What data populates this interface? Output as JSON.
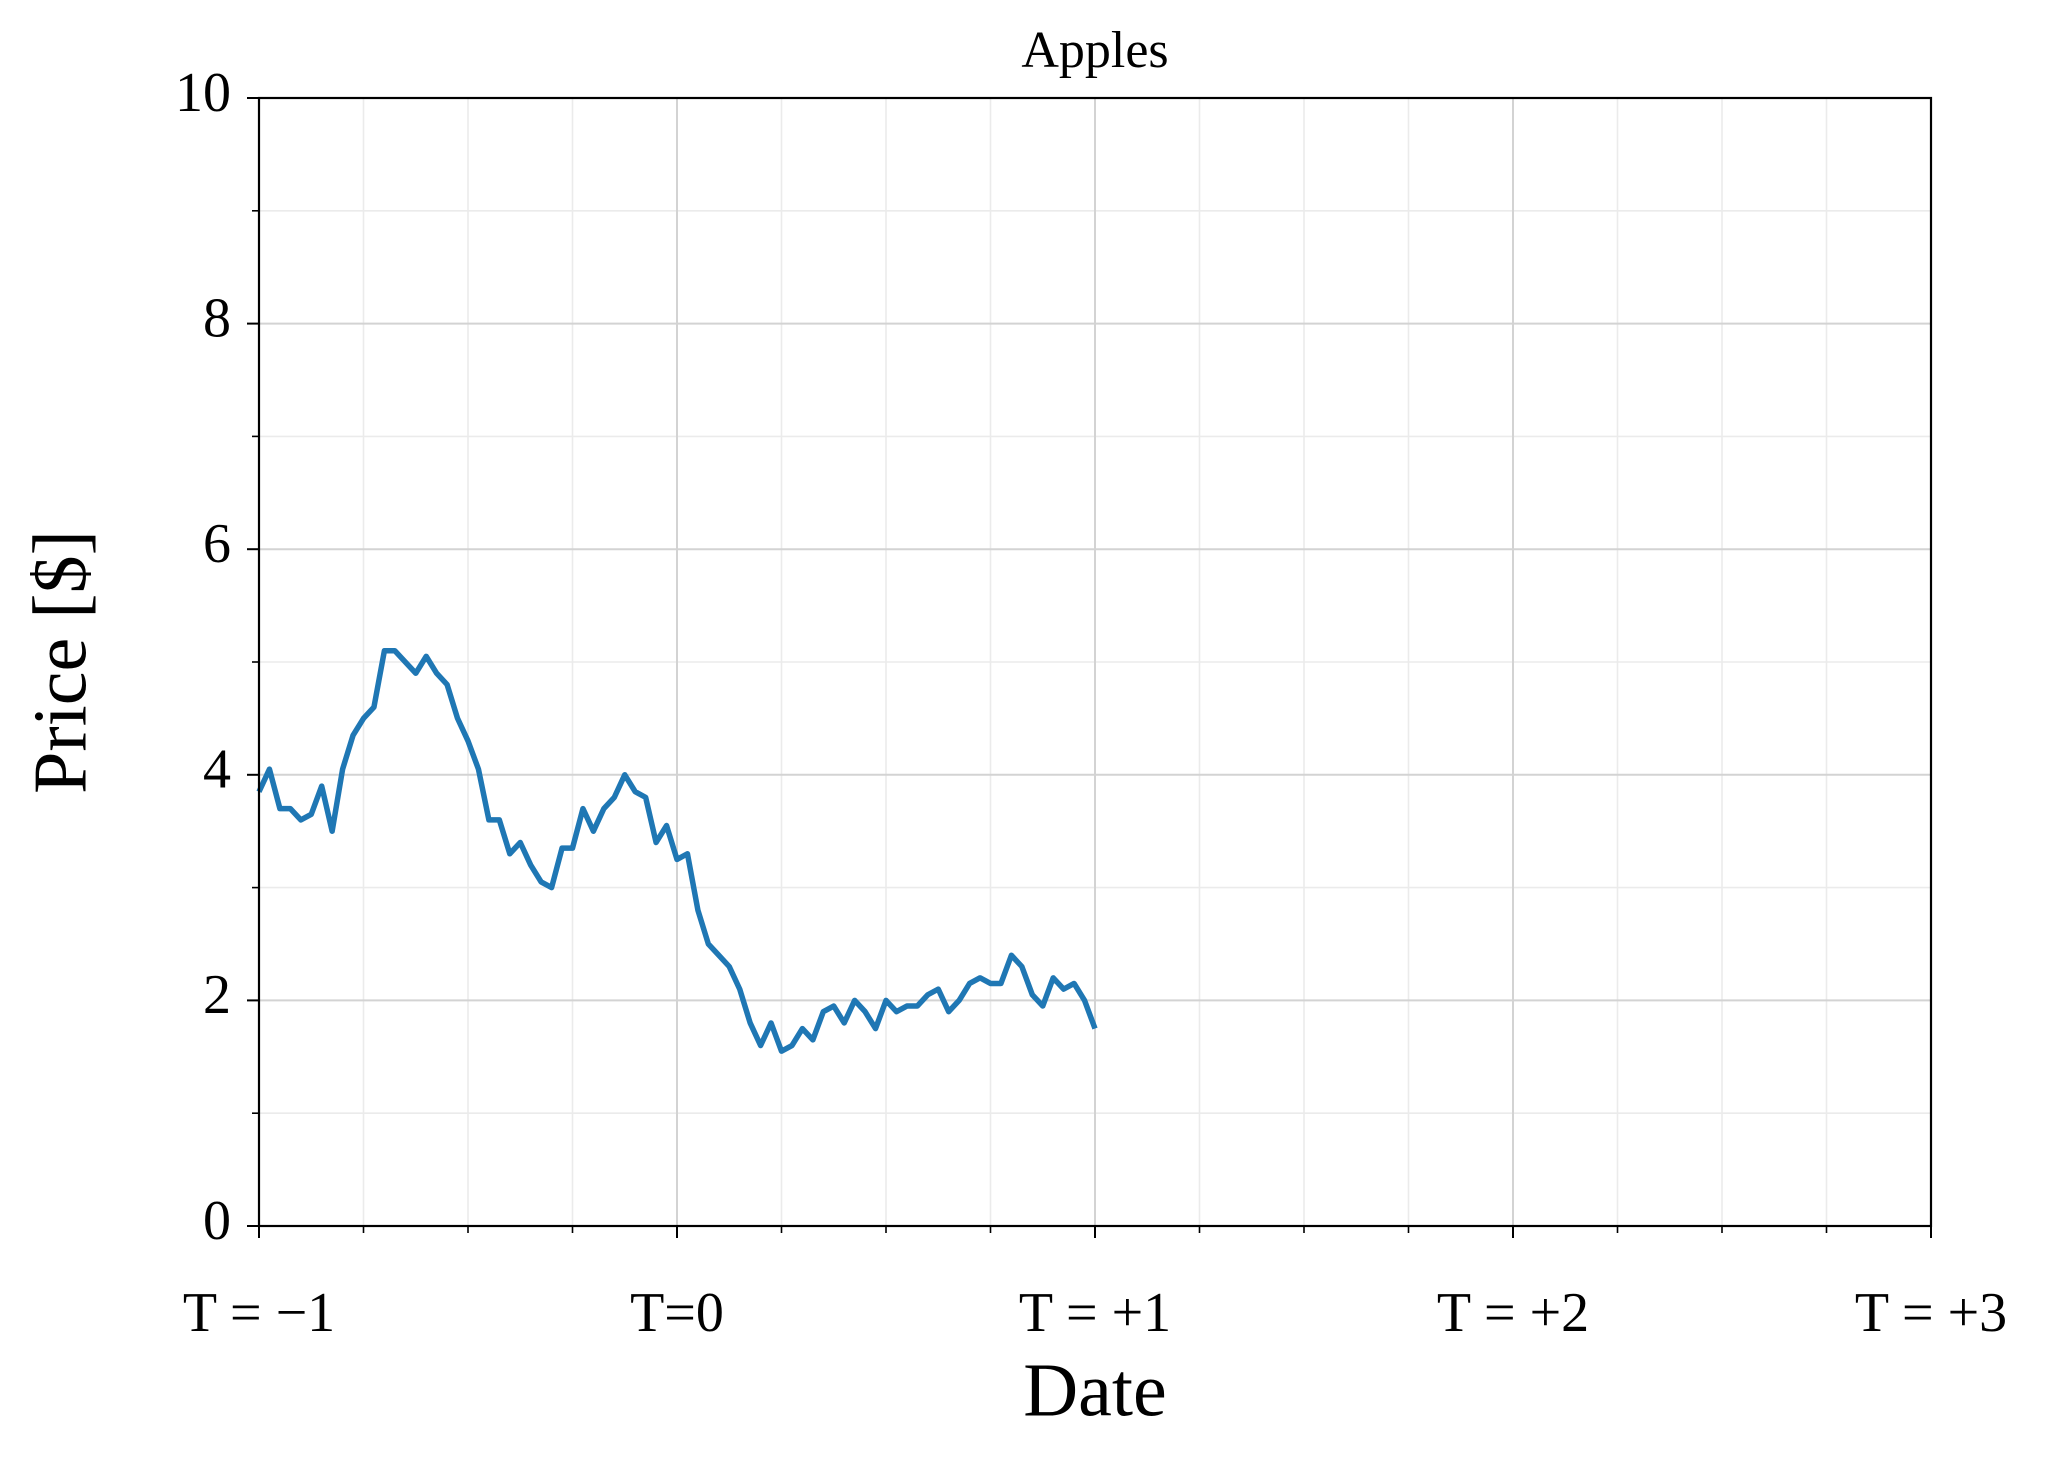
{
  "chart_data": {
    "type": "line",
    "title": "Apples",
    "xlabel": "Date",
    "ylabel": "Price [$]",
    "x": [
      -1,
      -0.975,
      -0.95,
      -0.925,
      -0.9,
      -0.875,
      -0.85,
      -0.825,
      -0.8,
      -0.775,
      -0.75,
      -0.725,
      -0.7,
      -0.675,
      -0.65,
      -0.625,
      -0.6,
      -0.575,
      -0.55,
      -0.525,
      -0.5,
      -0.475,
      -0.45,
      -0.425,
      -0.4,
      -0.375,
      -0.35,
      -0.325,
      -0.3,
      -0.275,
      -0.25,
      -0.225,
      -0.2,
      -0.175,
      -0.15,
      -0.125,
      -0.1,
      -0.075,
      -0.05,
      -0.025,
      0,
      0.025,
      0.05,
      0.075,
      0.1,
      0.125,
      0.15,
      0.175,
      0.2,
      0.225,
      0.25,
      0.275,
      0.3,
      0.325,
      0.35,
      0.375,
      0.4,
      0.425,
      0.45,
      0.475,
      0.5,
      0.525,
      0.55,
      0.575,
      0.6,
      0.625,
      0.65,
      0.675,
      0.7,
      0.725,
      0.75,
      0.775,
      0.8,
      0.825,
      0.85,
      0.875,
      0.9,
      0.925,
      0.95,
      0.975,
      1
    ],
    "series": [
      {
        "color": "#1f77b4",
        "values": [
          3.85,
          4.05,
          3.7,
          3.7,
          3.6,
          3.65,
          3.9,
          3.5,
          4.05,
          4.35,
          4.5,
          4.6,
          5.1,
          5.1,
          5.0,
          4.9,
          5.05,
          4.9,
          4.8,
          4.5,
          4.3,
          4.05,
          3.6,
          3.6,
          3.3,
          3.4,
          3.2,
          3.05,
          3.0,
          3.35,
          3.35,
          3.7,
          3.5,
          3.7,
          3.8,
          4.0,
          3.85,
          3.8,
          3.4,
          3.55,
          3.25,
          3.3,
          2.8,
          2.5,
          2.4,
          2.3,
          2.1,
          1.8,
          1.6,
          1.8,
          1.55,
          1.6,
          1.75,
          1.65,
          1.9,
          1.95,
          1.8,
          2.0,
          1.9,
          1.75,
          2.0,
          1.9,
          1.95,
          1.95,
          2.05,
          2.1,
          1.9,
          2.0,
          2.15,
          2.2,
          2.15,
          2.15,
          2.4,
          2.3,
          2.05,
          1.95,
          2.2,
          2.1,
          2.15,
          2.0,
          1.75
        ]
      }
    ],
    "xlim": [
      -1,
      3
    ],
    "ylim": [
      0,
      10
    ],
    "xticks": [
      {
        "value": -1,
        "label": "T = −1"
      },
      {
        "value": 0,
        "label": "T=0"
      },
      {
        "value": 1,
        "label": "T = +1"
      },
      {
        "value": 2,
        "label": "T = +2"
      },
      {
        "value": 3,
        "label": "T = +3"
      }
    ],
    "yticks": [
      0,
      2,
      4,
      6,
      8,
      10
    ],
    "xminorticks": [
      -0.75,
      -0.5,
      -0.25,
      0.25,
      0.5,
      0.75,
      1.25,
      1.5,
      1.75,
      2.25,
      2.5,
      2.75
    ],
    "yminorticks": [
      1,
      3,
      5,
      7,
      9
    ],
    "grid": true
  }
}
